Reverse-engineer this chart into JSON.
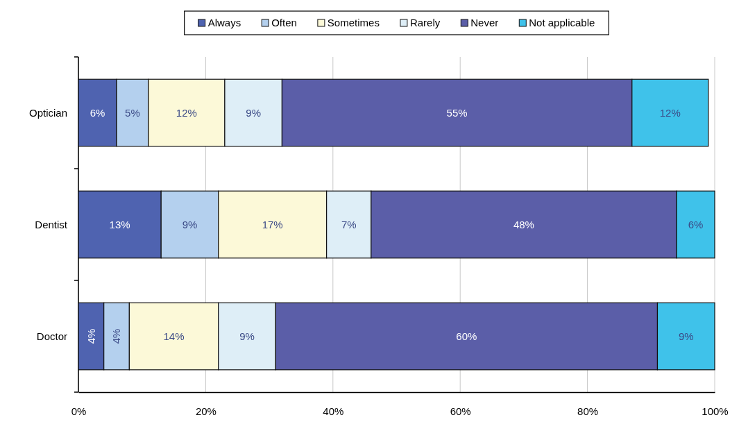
{
  "chart_data": {
    "type": "bar",
    "orientation": "horizontal",
    "stacked": true,
    "categories": [
      "Optician",
      "Dentist",
      "Doctor"
    ],
    "series": [
      {
        "name": "Always",
        "color": "#4f63b0",
        "values": [
          6,
          13,
          4
        ],
        "value_labels": [
          "6%",
          "13%",
          "4%"
        ]
      },
      {
        "name": "Often",
        "color": "#b4d0ee",
        "values": [
          5,
          9,
          4
        ],
        "value_labels": [
          "5%",
          "9%",
          "4%"
        ]
      },
      {
        "name": "Sometimes",
        "color": "#fcf9d8",
        "values": [
          12,
          17,
          14
        ],
        "value_labels": [
          "12%",
          "17%",
          "14%"
        ]
      },
      {
        "name": "Rarely",
        "color": "#deeef7",
        "values": [
          9,
          7,
          9
        ],
        "value_labels": [
          "9%",
          "7%",
          "9%"
        ]
      },
      {
        "name": "Never",
        "color": "#5b5ea8",
        "values": [
          55,
          48,
          60
        ],
        "value_labels": [
          "55%",
          "48%",
          "60%"
        ]
      },
      {
        "name": "Not applicable",
        "color": "#3fc2ea",
        "values": [
          12,
          6,
          9
        ],
        "value_labels": [
          "12%",
          "6%",
          "9%"
        ]
      }
    ],
    "xlim": [
      0,
      100
    ],
    "xticks": [
      {
        "value": 0,
        "label": "0%"
      },
      {
        "value": 20,
        "label": "20%"
      },
      {
        "value": 40,
        "label": "40%"
      },
      {
        "value": 60,
        "label": "60%"
      },
      {
        "value": 80,
        "label": "80%"
      },
      {
        "value": 100,
        "label": "100%"
      }
    ],
    "grid": "x",
    "legend": "top"
  }
}
